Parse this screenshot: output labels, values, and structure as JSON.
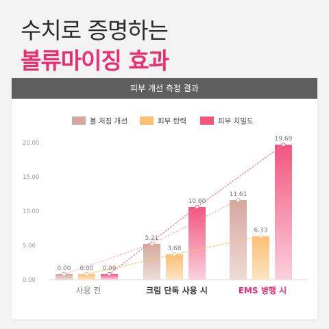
{
  "headline": {
    "line1": "수치로 증명하는",
    "line2": "볼류마이징 효과"
  },
  "colors": {
    "accent": "#ec2c6c",
    "header_bg": "#5f5f5f",
    "series": [
      "#d4a89e",
      "#fbbf75",
      "#f2567f"
    ],
    "series_light": [
      "#efdcd7",
      "#fde4c2",
      "#fbd0dc"
    ],
    "trend_lines": [
      "#f47da0",
      "#f8c56b"
    ]
  },
  "chart_data": {
    "type": "bar",
    "title": "피부 개선 측정 결과",
    "categories": [
      "사용 전",
      "크림 단독 사용 시",
      "EMS 병행 시"
    ],
    "highlight_category_index": 2,
    "series": [
      {
        "name": "볼 처짐 개선",
        "values": [
          0.0,
          5.21,
          11.61
        ]
      },
      {
        "name": "피부 탄력",
        "values": [
          0.0,
          3.68,
          6.33
        ]
      },
      {
        "name": "피부 치밀도",
        "values": [
          0.0,
          10.6,
          19.69
        ]
      }
    ],
    "value_labels": [
      [
        "0.00",
        "5.21",
        "11.61"
      ],
      [
        "0.00",
        "3.68",
        "6.33"
      ],
      [
        "0.00",
        "10.60",
        "19.69"
      ]
    ],
    "ylim": [
      0,
      20
    ],
    "yticks": [
      "0.00",
      "5.00",
      "10.00",
      "15.00",
      "20.00"
    ],
    "grid": false,
    "legend_position": "top",
    "trend_lines": true
  }
}
